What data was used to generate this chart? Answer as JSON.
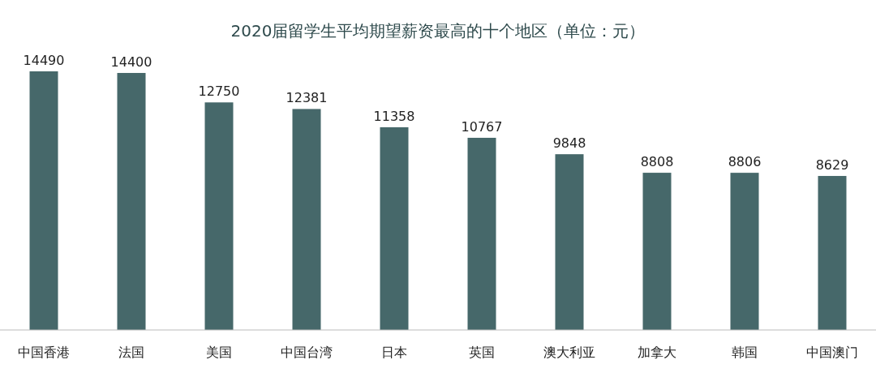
{
  "chart_data": {
    "type": "bar",
    "title": "2020届留学生平均期望薪资最高的十个地区（单位：元）",
    "categories": [
      "中国香港",
      "法国",
      "美国",
      "中国台湾",
      "日本",
      "英国",
      "澳大利亚",
      "加拿大",
      "韩国",
      "中国澳门"
    ],
    "values": [
      14490,
      14400,
      12750,
      12381,
      11358,
      10767,
      9848,
      8808,
      8806,
      8629
    ],
    "color": "#46686a",
    "data_labels": true
  }
}
